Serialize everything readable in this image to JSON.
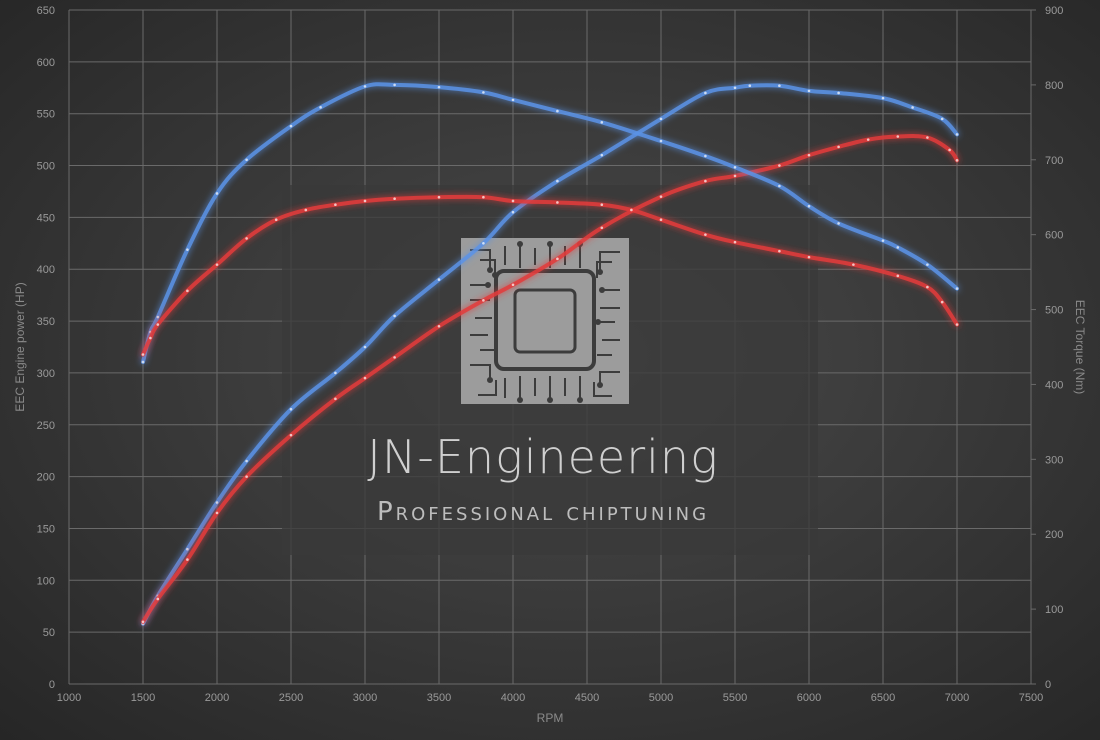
{
  "chart_data": {
    "type": "line",
    "xlabel": "RPM",
    "ylabel": "EEC Engine power (HP)",
    "y2label": "EEC Torque (Nm)",
    "xlim": [
      1000,
      7500
    ],
    "ylim": [
      0,
      650
    ],
    "y2lim": [
      0,
      900
    ],
    "x_ticks": [
      "1000",
      "1500",
      "2000",
      "2500",
      "3000",
      "3500",
      "4000",
      "4500",
      "5000",
      "5500",
      "6000",
      "6500",
      "7000",
      "7500"
    ],
    "y_ticks": [
      "0",
      "50",
      "100",
      "150",
      "200",
      "250",
      "300",
      "350",
      "400",
      "450",
      "500",
      "550",
      "600",
      "650"
    ],
    "y2_ticks": [
      "0",
      "100",
      "200",
      "300",
      "400",
      "500",
      "600",
      "700",
      "800",
      "900"
    ],
    "grid": true,
    "series": [
      {
        "axis": "left",
        "color": "#5b93e6",
        "x": [
          1500,
          1600,
          1800,
          2000,
          2200,
          2500,
          2800,
          3000,
          3200,
          3500,
          3800,
          4000,
          4300,
          4600,
          5000,
          5300,
          5500,
          5600,
          5800,
          6000,
          6200,
          6500,
          6700,
          6900,
          7000
        ],
        "y": [
          58,
          85,
          130,
          175,
          215,
          265,
          300,
          325,
          355,
          390,
          425,
          455,
          485,
          510,
          545,
          570,
          575,
          577,
          577,
          572,
          570,
          565,
          556,
          545,
          530
        ]
      },
      {
        "axis": "left",
        "color": "#e33b3b",
        "x": [
          1500,
          1600,
          1800,
          2000,
          2200,
          2500,
          2800,
          3000,
          3200,
          3500,
          3800,
          4000,
          4300,
          4600,
          5000,
          5300,
          5500,
          5800,
          6000,
          6200,
          6400,
          6600,
          6800,
          6950,
          7000
        ],
        "y": [
          60,
          82,
          120,
          165,
          200,
          240,
          275,
          295,
          315,
          345,
          370,
          385,
          410,
          440,
          470,
          485,
          490,
          500,
          510,
          518,
          525,
          528,
          527,
          515,
          505
        ]
      },
      {
        "axis": "right",
        "color": "#5b93e6",
        "x": [
          1500,
          1550,
          1600,
          1800,
          2000,
          2200,
          2500,
          2700,
          3000,
          3200,
          3500,
          3800,
          4000,
          4300,
          4600,
          5000,
          5300,
          5500,
          5800,
          6000,
          6200,
          6500,
          6600,
          6800,
          7000
        ],
        "y": [
          430,
          470,
          490,
          580,
          655,
          700,
          745,
          770,
          798,
          800,
          797,
          790,
          780,
          765,
          750,
          725,
          705,
          690,
          665,
          638,
          615,
          592,
          583,
          560,
          528
        ]
      },
      {
        "axis": "right",
        "color": "#e33b3b",
        "x": [
          1500,
          1550,
          1600,
          1800,
          2000,
          2200,
          2400,
          2600,
          2800,
          3000,
          3200,
          3500,
          3800,
          4000,
          4300,
          4600,
          4800,
          5000,
          5300,
          5500,
          5800,
          6000,
          6300,
          6600,
          6800,
          6900,
          7000
        ],
        "y": [
          440,
          462,
          480,
          525,
          560,
          595,
          620,
          633,
          640,
          645,
          648,
          650,
          650,
          645,
          643,
          640,
          633,
          620,
          600,
          590,
          578,
          570,
          560,
          545,
          530,
          510,
          480
        ]
      }
    ]
  },
  "watermark": {
    "title": "JN-Engineering",
    "subtitle": "Professional chiptuning"
  }
}
